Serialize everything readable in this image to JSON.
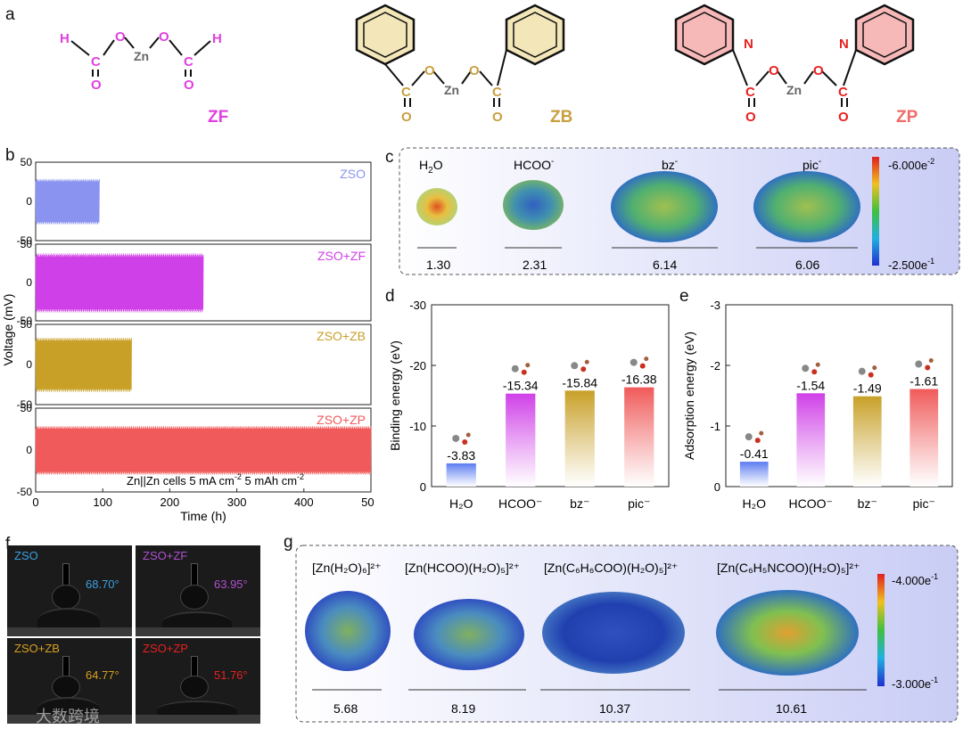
{
  "panel_labels": {
    "a": "a",
    "b": "b",
    "c": "c",
    "d": "d",
    "e": "e",
    "f": "f",
    "g": "g"
  },
  "panel_a": {
    "zf": {
      "name": "ZF",
      "H_left": "H",
      "H_right": "H",
      "C1": "C",
      "C2": "C",
      "O1": "O",
      "O2": "O",
      "O3": "O",
      "O4": "O",
      "Zn": "Zn",
      "color": "#e040e0"
    },
    "zb": {
      "name": "ZB",
      "C1": "C",
      "C2": "C",
      "O1": "O",
      "O2": "O",
      "O3": "O",
      "O4": "O",
      "Zn": "Zn",
      "color": "#c8a040",
      "ring_fill": "#f3e6b8"
    },
    "zp": {
      "name": "ZP",
      "C1": "C",
      "C2": "C",
      "O1": "O",
      "O2": "O",
      "O3": "O",
      "O4": "O",
      "N1": "N",
      "N2": "N",
      "Zn": "Zn",
      "color": "#f06a6a",
      "ring_fill": "#f7b8b8"
    }
  },
  "chart_data": [
    {
      "type": "line",
      "panel": "b",
      "title": "",
      "xlabel": "Time (h)",
      "ylabel": "Voltage (mV)",
      "xlim": [
        0,
        500
      ],
      "ylim": [
        -50,
        50
      ],
      "xticks": [
        "0",
        "100",
        "200",
        "300",
        "400",
        "500"
      ],
      "yticks": [
        "50",
        "0",
        "-50"
      ],
      "annotation": "Zn||Zn cells",
      "annotation_current": "5 mA cm",
      "annotation_current_sup": "-2",
      "annotation_capacity": "5 mAh cm",
      "annotation_capacity_sup": "-2",
      "series": [
        {
          "name": "ZSO",
          "color": "#8a93f0",
          "end_h": 95,
          "amplitude_mV": 30
        },
        {
          "name": "ZSO+ZF",
          "color": "#d040e8",
          "end_h": 250,
          "amplitude_mV": 40
        },
        {
          "name": "ZSO+ZB",
          "color": "#c8a028",
          "end_h": 143,
          "amplitude_mV": 35
        },
        {
          "name": "ZSO+ZP",
          "color": "#f05a5a",
          "end_h": 500,
          "amplitude_mV": 30
        }
      ]
    },
    {
      "type": "bar",
      "panel": "d",
      "xlabel": "",
      "ylabel": "Binding energy (eV)",
      "ylim": [
        0,
        -30
      ],
      "yticks": [
        "-30",
        "-20",
        "-10",
        "0"
      ],
      "categories": [
        "H₂O",
        "HCOO⁻",
        "bz⁻",
        "pic⁻"
      ],
      "values": [
        -3.83,
        -15.34,
        -15.84,
        -16.38
      ],
      "value_labels": [
        "-3.83",
        "-15.34",
        "-15.84",
        "-16.38"
      ],
      "colors": [
        "#5b7cf0",
        "#d040e8",
        "#c8a028",
        "#f05a5a"
      ]
    },
    {
      "type": "bar",
      "panel": "e",
      "xlabel": "",
      "ylabel": "Adsorption energy (eV)",
      "ylim": [
        0,
        -3
      ],
      "yticks": [
        "-3",
        "-2",
        "-1",
        "0"
      ],
      "categories": [
        "H₂O",
        "HCOO⁻",
        "bz⁻",
        "pic⁻"
      ],
      "values": [
        -0.41,
        -1.54,
        -1.49,
        -1.61
      ],
      "value_labels": [
        "-0.41",
        "-1.54",
        "-1.49",
        "-1.61"
      ],
      "colors": [
        "#5b7cf0",
        "#d040e8",
        "#c8a028",
        "#f05a5a"
      ]
    }
  ],
  "panel_c": {
    "molecules": [
      {
        "label_main": "H",
        "label_sub": "2",
        "label_rest": "O",
        "width": "1.30"
      },
      {
        "label_main": "HCOO",
        "label_sup": "-",
        "width": "2.31"
      },
      {
        "label_main": "bz",
        "label_sup": "-",
        "width": "6.14"
      },
      {
        "label_main": "pic",
        "label_sup": "-",
        "width": "6.06"
      }
    ],
    "scale_max": "-6.000e",
    "scale_max_sup": "-2",
    "scale_min": "-2.500e",
    "scale_min_sup": "-1"
  },
  "panel_f": {
    "photos": [
      {
        "name": "ZSO",
        "angle": "68.70°",
        "color": "#3aa0e0"
      },
      {
        "name": "ZSO+ZF",
        "angle": "63.95°",
        "color": "#b050d0"
      },
      {
        "name": "ZSO+ZB",
        "angle": "64.77°",
        "color": "#d8a020"
      },
      {
        "name": "ZSO+ZP",
        "angle": "51.76°",
        "color": "#e82020"
      }
    ],
    "watermark": "大数跨境"
  },
  "panel_g": {
    "complexes": [
      {
        "formula": "[Zn(H₂O)₆]²⁺",
        "width": "5.68"
      },
      {
        "formula": "[Zn(HCOO)(H₂O)₅]²⁺",
        "width": "8.19"
      },
      {
        "formula": "[Zn(C₆H₆COO)(H₂O)₅]²⁺",
        "width": "10.37"
      },
      {
        "formula": "[Zn(C₆H₅NCOO)(H₂O)₅]²⁺",
        "width": "10.61"
      }
    ],
    "scale_max": "-4.000e",
    "scale_max_sup": "-1",
    "scale_min": "-3.000e",
    "scale_min_sup": "-1"
  }
}
